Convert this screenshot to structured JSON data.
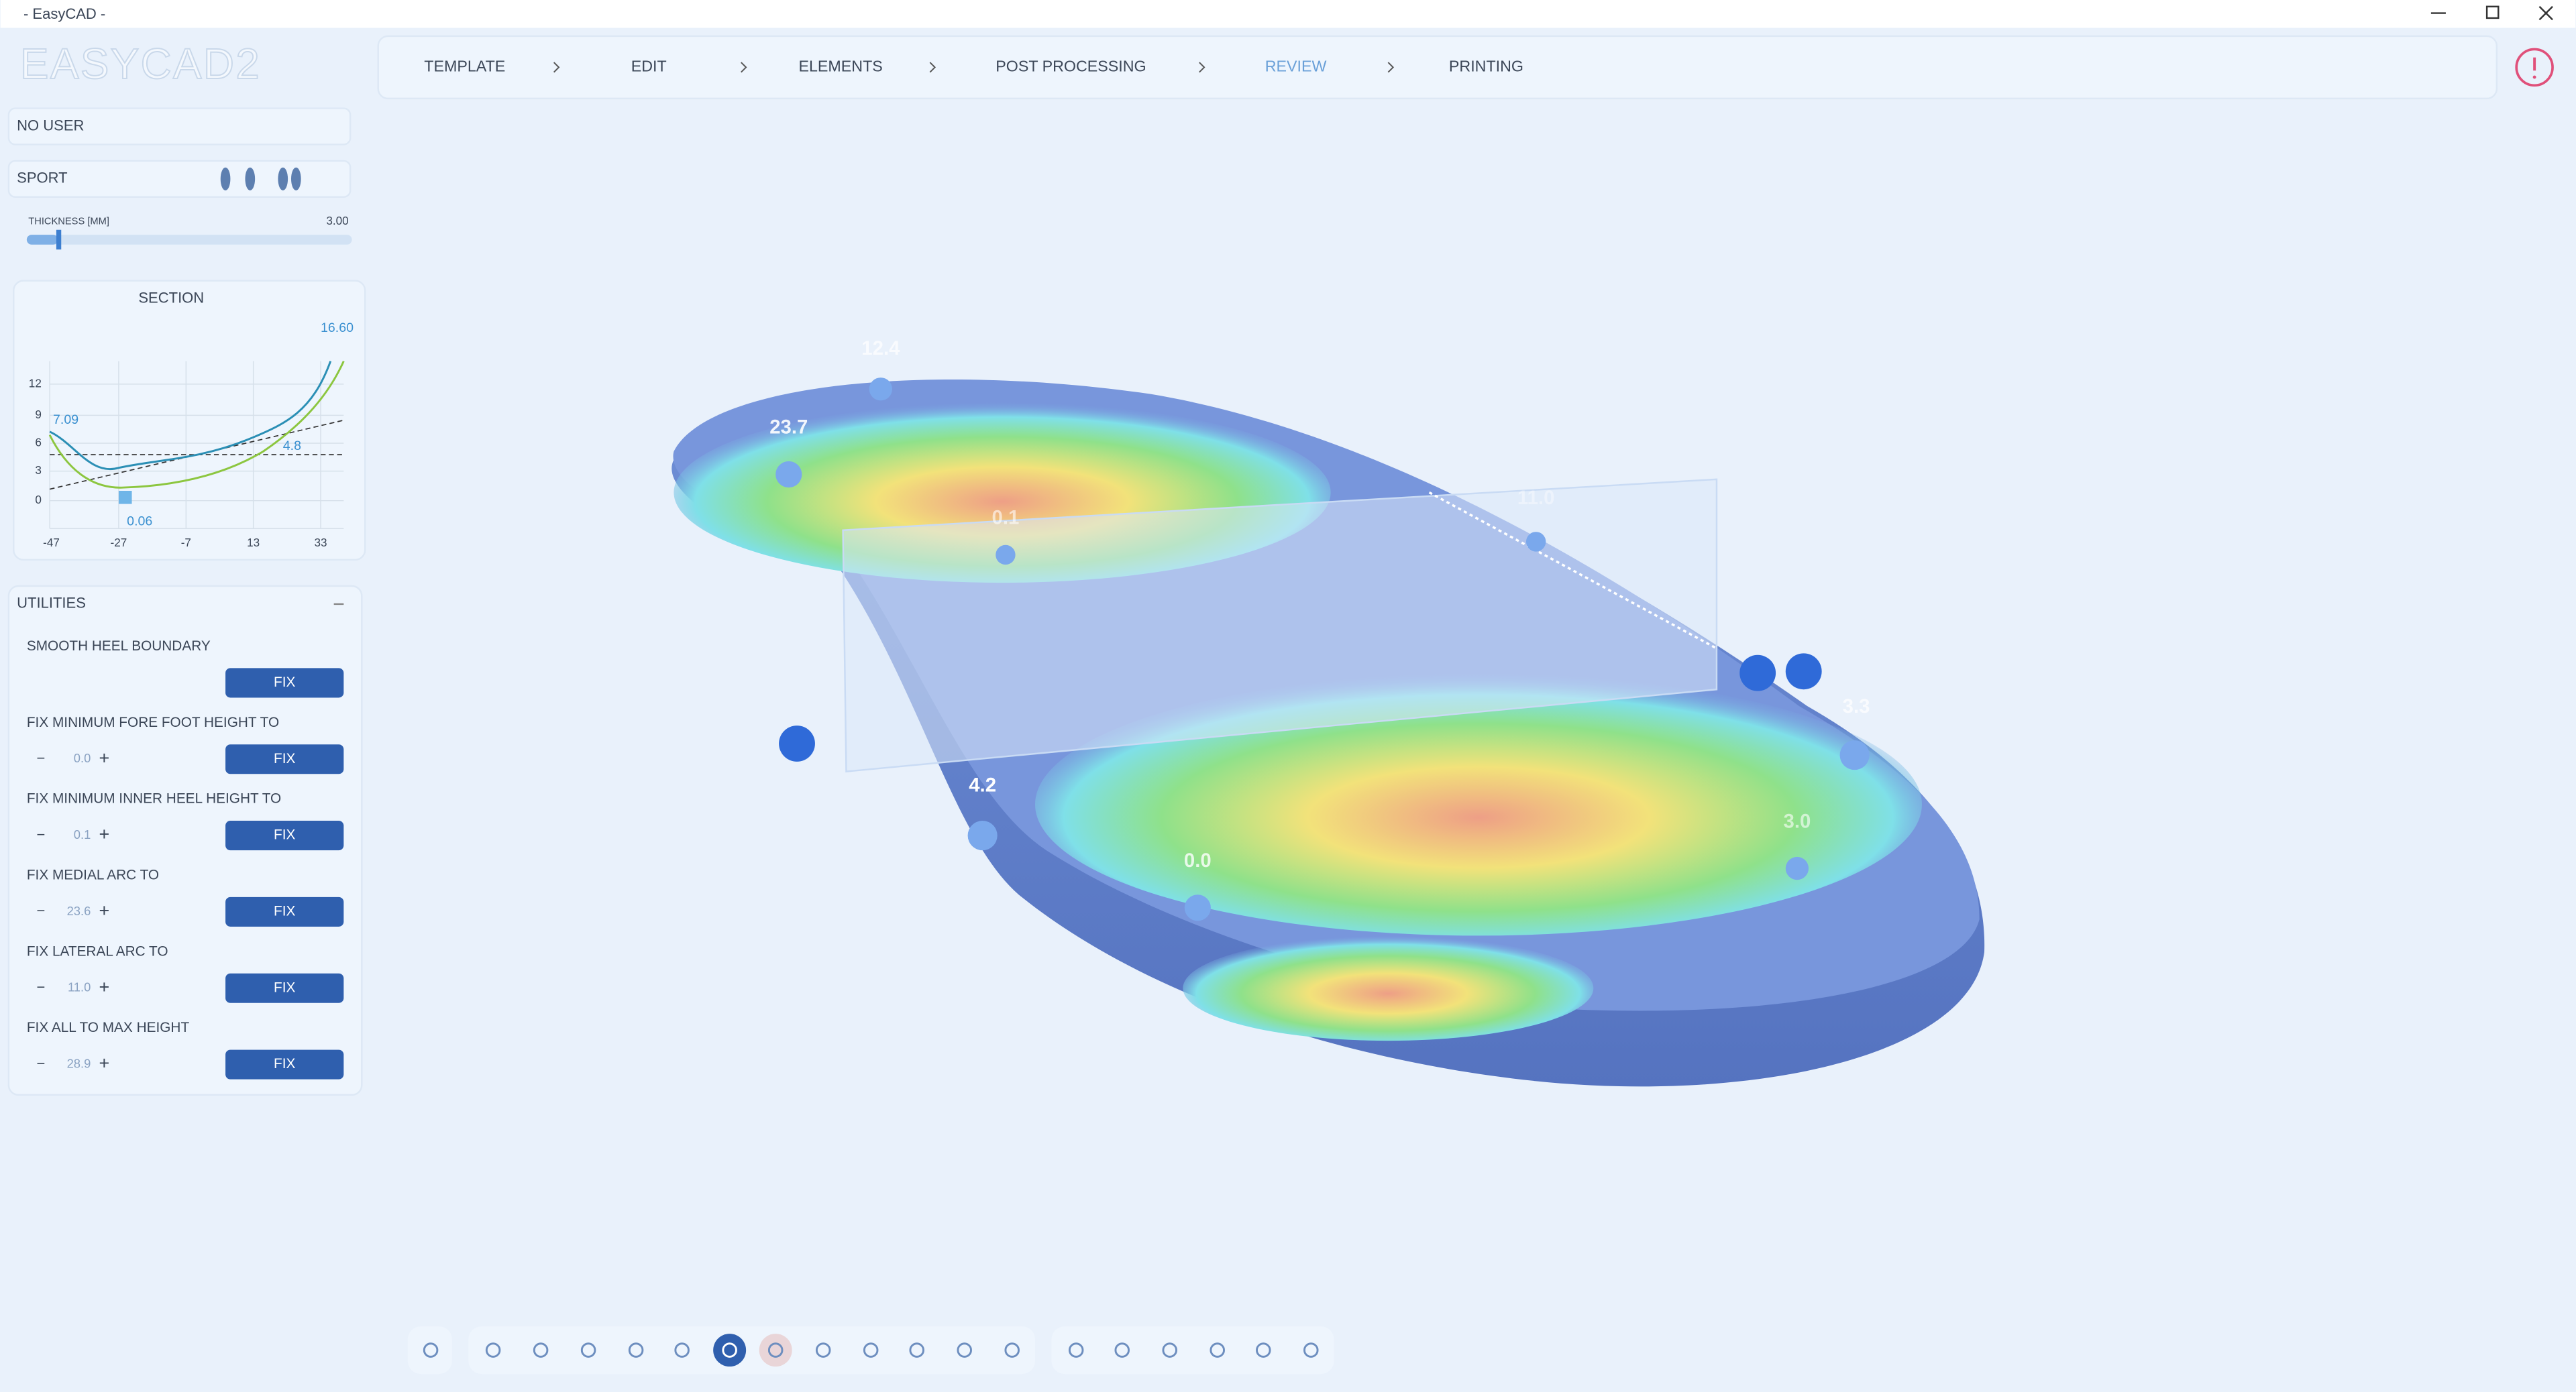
{
  "window_title": "- EasyCAD -",
  "logo": "EASYCAD2",
  "nav": [
    "TEMPLATE",
    "EDIT",
    "ELEMENTS",
    "POST PROCESSING",
    "REVIEW",
    "PRINTING"
  ],
  "nav_active": "REVIEW",
  "user": "NO USER",
  "profile": "SPORT",
  "thickness": {
    "label": "THICKNESS [MM]",
    "value": "3.00"
  },
  "section": {
    "title": "SECTION",
    "max_value": "16.60",
    "yticks": [
      "12",
      "9",
      "6",
      "3",
      "0"
    ],
    "xticks": [
      "-47",
      "-27",
      "-7",
      "13",
      "33"
    ],
    "annotations": [
      "7.09",
      "4.8",
      "0.06"
    ]
  },
  "utilities": {
    "title": "UTILITIES",
    "button": "FIX",
    "items": [
      {
        "label": "SMOOTH HEEL BOUNDARY"
      },
      {
        "label": "FIX MINIMUM FORE FOOT HEIGHT TO",
        "value": "0.0"
      },
      {
        "label": "FIX MINIMUM INNER HEEL HEIGHT TO",
        "value": "0.1"
      },
      {
        "label": "FIX MEDIAL ARC TO",
        "value": "23.6"
      },
      {
        "label": "FIX LATERAL ARC TO",
        "value": "11.0"
      },
      {
        "label": "FIX ALL TO MAX HEIGHT",
        "value": "28.9"
      }
    ]
  },
  "model_labels": [
    "12.4",
    "23.7",
    "0.1",
    "11.0",
    "3.3",
    "4.2",
    "0.0",
    "3.0"
  ]
}
